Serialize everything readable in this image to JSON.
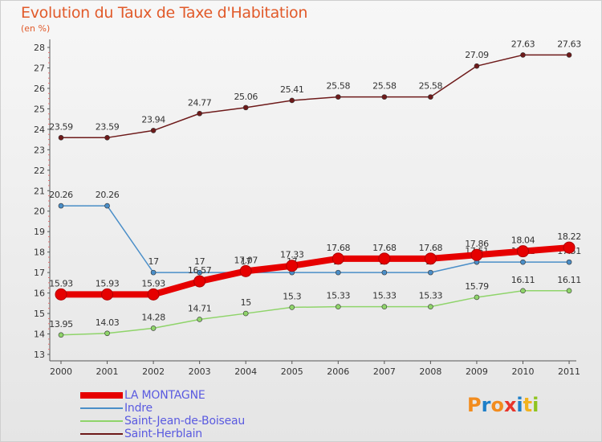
{
  "chart_data": {
    "type": "line",
    "title": "Evolution du Taux de Taxe d'Habitation",
    "subtitle": "(en %)",
    "x": [
      "2000",
      "2001",
      "2002",
      "2003",
      "2004",
      "2005",
      "2006",
      "2007",
      "2008",
      "2009",
      "2010",
      "2011"
    ],
    "ylim": [
      13,
      28
    ],
    "yticks": [
      13,
      14,
      15,
      16,
      17,
      18,
      19,
      20,
      21,
      22,
      23,
      24,
      25,
      26,
      27,
      28
    ],
    "grid": false,
    "legend_position": "bottom-left",
    "series": [
      {
        "name": "Saint-Herblain",
        "color": "#6e1a1a",
        "values": [
          23.59,
          23.59,
          23.94,
          24.77,
          25.06,
          25.41,
          25.58,
          25.58,
          25.58,
          27.09,
          27.63,
          27.63
        ],
        "labels": [
          "23.59",
          "23.59",
          "23.94",
          "24.77",
          "25.06",
          "25.41",
          "25.58",
          "25.58",
          "25.58",
          "27.09",
          "27.63",
          "27.63"
        ]
      },
      {
        "name": "Indre",
        "color": "#4a8ec8",
        "values": [
          20.26,
          20.26,
          17,
          17,
          17,
          17,
          17,
          17,
          17,
          17.51,
          17.51,
          17.51
        ],
        "labels": [
          "20.26",
          "20.26",
          "17",
          "17",
          "17",
          "17",
          "17",
          "17",
          "17",
          "17.51",
          "17.51",
          "17.51"
        ]
      },
      {
        "name": "Saint-Jean-de-Boiseau",
        "color": "#8fd46a",
        "values": [
          13.95,
          14.03,
          14.28,
          14.71,
          15,
          15.3,
          15.33,
          15.33,
          15.33,
          15.79,
          16.11,
          16.11
        ],
        "labels": [
          "13.95",
          "14.03",
          "14.28",
          "14.71",
          "15",
          "15.3",
          "15.33",
          "15.33",
          "15.33",
          "15.79",
          "16.11",
          "16.11"
        ]
      },
      {
        "name": "LA MONTAGNE",
        "color": "#e60000",
        "values": [
          15.93,
          15.93,
          15.93,
          16.57,
          17.07,
          17.33,
          17.68,
          17.68,
          17.68,
          17.86,
          18.04,
          18.22
        ],
        "labels": [
          "15.93",
          "15.93",
          "15.93",
          "16.57",
          "17.07",
          "17.33",
          "17.68",
          "17.68",
          "17.68",
          "17.86",
          "18.04",
          "18.22"
        ]
      }
    ]
  },
  "legend": [
    {
      "label": "LA MONTAGNE",
      "color": "#e60000",
      "thickness": 8
    },
    {
      "label": "Indre",
      "color": "#4a8ec8",
      "thickness": 2
    },
    {
      "label": "Saint-Jean-de-Boiseau",
      "color": "#8fd46a",
      "thickness": 2
    },
    {
      "label": "Saint-Herblain",
      "color": "#6e1a1a",
      "thickness": 2
    }
  ],
  "logo": {
    "text": "Proxiti",
    "letters": [
      "P",
      "r",
      "o",
      "x",
      "i",
      "t",
      "i"
    ],
    "colors": [
      "#f28c1e",
      "#1e7fc8",
      "#f28c1e",
      "#e8352b",
      "#1e7fc8",
      "#f2b21e",
      "#8fc41e"
    ]
  }
}
